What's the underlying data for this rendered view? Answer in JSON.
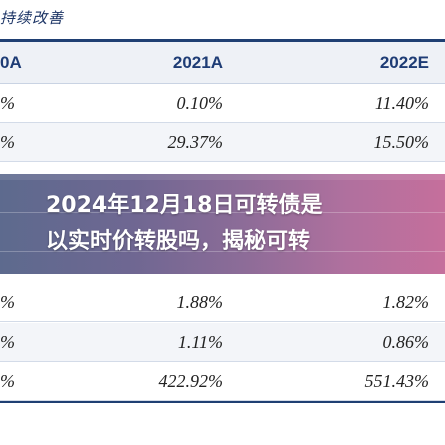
{
  "subtitle": "持续改善",
  "table": {
    "columns": [
      "0A",
      "2021A",
      "2022E"
    ],
    "rows": [
      [
        "%",
        "0.10%",
        "11.40%"
      ],
      [
        "%",
        "29.37%",
        "15.50%"
      ],
      [
        "%",
        "1.88%",
        "1.82%"
      ],
      [
        "%",
        "1.11%",
        "0.86%"
      ],
      [
        "%",
        "422.92%",
        "551.43%"
      ]
    ]
  },
  "overlay": {
    "line1": "2024年12月18日可转债是",
    "line2": "以实时价转股吗，揭秘可转"
  }
}
